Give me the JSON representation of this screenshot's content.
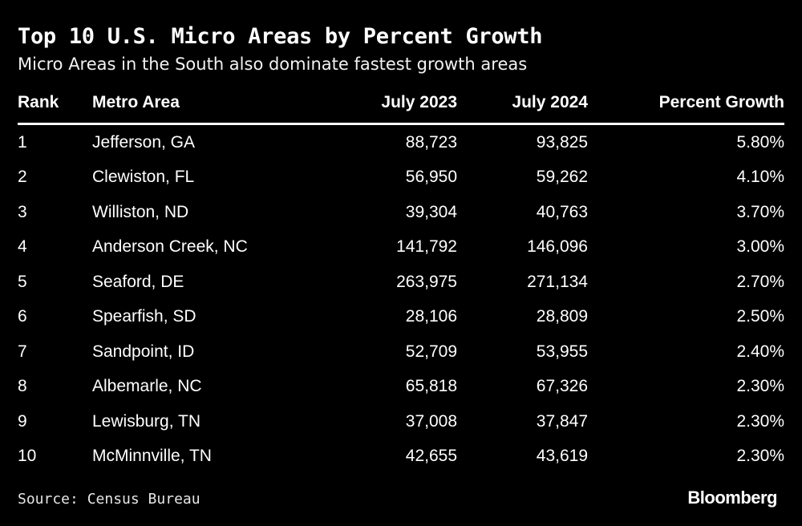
{
  "chart_data": {
    "type": "table",
    "title": "Top 10 U.S. Micro Areas by Percent Growth",
    "subtitle": "Micro Areas in the South also dominate fastest growth areas",
    "columns": [
      "Rank",
      "Metro Area",
      "July 2023",
      "July 2024",
      "Percent Growth"
    ],
    "rows": [
      [
        "1",
        "Jefferson, GA",
        "88,723",
        "93,825",
        "5.80%"
      ],
      [
        "2",
        "Clewiston, FL",
        "56,950",
        "59,262",
        "4.10%"
      ],
      [
        "3",
        "Williston, ND",
        "39,304",
        "40,763",
        "3.70%"
      ],
      [
        "4",
        "Anderson Creek, NC",
        "141,792",
        "146,096",
        "3.00%"
      ],
      [
        "5",
        "Seaford, DE",
        "263,975",
        "271,134",
        "2.70%"
      ],
      [
        "6",
        "Spearfish, SD",
        "28,106",
        "28,809",
        "2.50%"
      ],
      [
        "7",
        "Sandpoint, ID",
        "52,709",
        "53,955",
        "2.40%"
      ],
      [
        "8",
        "Albemarle, NC",
        "65,818",
        "67,326",
        "2.30%"
      ],
      [
        "9",
        "Lewisburg, TN",
        "37,008",
        "37,847",
        "2.30%"
      ],
      [
        "10",
        "McMinnville, TN",
        "42,655",
        "43,619",
        "2.30%"
      ]
    ],
    "source": "Source: Census Bureau",
    "brand": "Bloomberg"
  }
}
